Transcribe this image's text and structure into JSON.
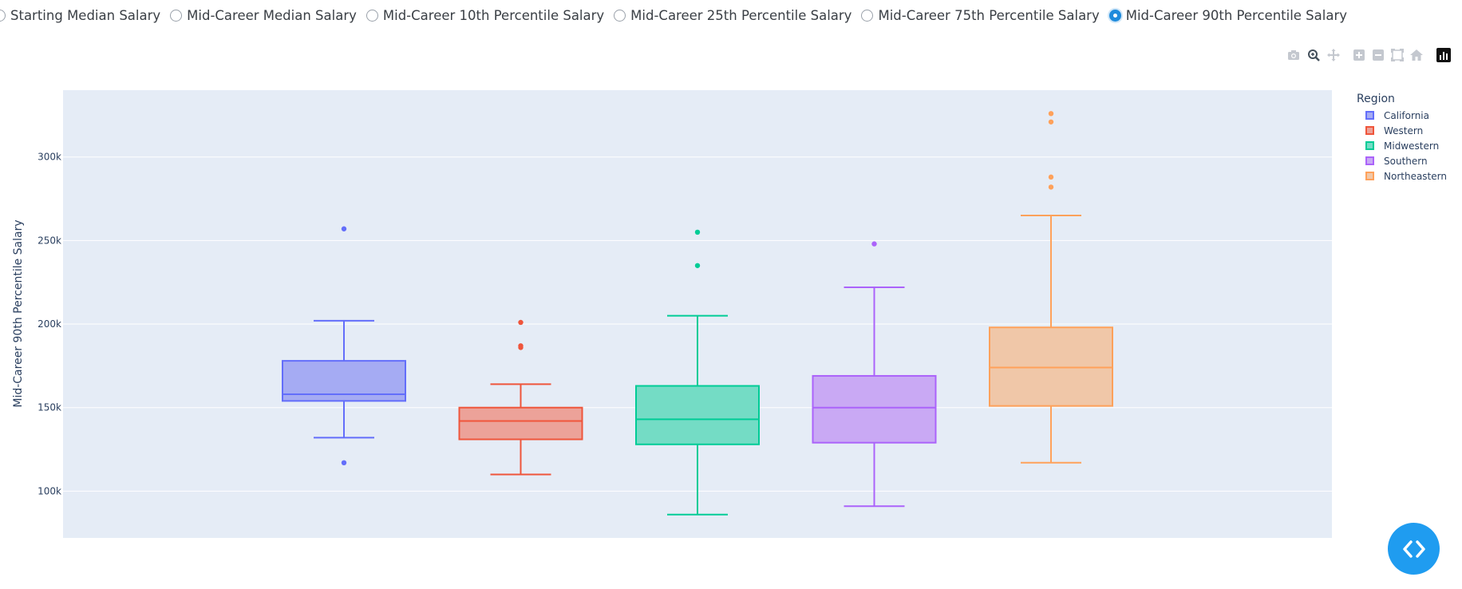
{
  "radio": {
    "options": [
      "Starting Median Salary",
      "Mid-Career Median Salary",
      "Mid-Career 10th Percentile Salary",
      "Mid-Career 25th Percentile Salary",
      "Mid-Career 75th Percentile Salary",
      "Mid-Career 90th Percentile Salary"
    ],
    "selected_index": 5
  },
  "modebar": [
    "camera-icon",
    "zoom-icon",
    "pan-icon",
    "zoom-in-icon",
    "zoom-out-icon",
    "autoscale-icon",
    "reset-axes-icon",
    "plotly-logo-icon"
  ],
  "legend": {
    "title": "Region"
  },
  "chart_data": {
    "type": "box",
    "title": "",
    "xlabel": "",
    "ylabel": "Mid-Career 90th Percentile Salary",
    "ylim": [
      72000,
      340000
    ],
    "yticks": [
      100000,
      150000,
      200000,
      250000,
      300000
    ],
    "ytick_labels": [
      "100k",
      "150k",
      "200k",
      "250k",
      "300k"
    ],
    "grid": true,
    "legend_position": "top-right",
    "series": [
      {
        "name": "California",
        "color": "#636efa",
        "fill": "#a5abf3",
        "lower_whisker": 132000,
        "q1": 154000,
        "median": 158000,
        "q3": 178000,
        "upper_whisker": 202000,
        "outliers": [
          117000,
          257000
        ]
      },
      {
        "name": "Western",
        "color": "#ef553b",
        "fill": "#eca299",
        "lower_whisker": 110000,
        "q1": 131000,
        "median": 142000,
        "q3": 150000,
        "upper_whisker": 164000,
        "outliers": [
          186000,
          187000,
          201000
        ]
      },
      {
        "name": "Midwestern",
        "color": "#00cc96",
        "fill": "#74dcc5",
        "lower_whisker": 86000,
        "q1": 128000,
        "median": 143000,
        "q3": 163000,
        "upper_whisker": 205000,
        "outliers": [
          235000,
          255000
        ]
      },
      {
        "name": "Southern",
        "color": "#ab63fa",
        "fill": "#c9a9f4",
        "lower_whisker": 91000,
        "q1": 129000,
        "median": 150000,
        "q3": 169000,
        "upper_whisker": 222000,
        "outliers": [
          248000
        ]
      },
      {
        "name": "Northeastern",
        "color": "#ffa15a",
        "fill": "#f0c7a8",
        "lower_whisker": 117000,
        "q1": 151000,
        "median": 174000,
        "q3": 198000,
        "upper_whisker": 265000,
        "outliers": [
          282000,
          288000,
          321000,
          326000
        ]
      }
    ]
  }
}
